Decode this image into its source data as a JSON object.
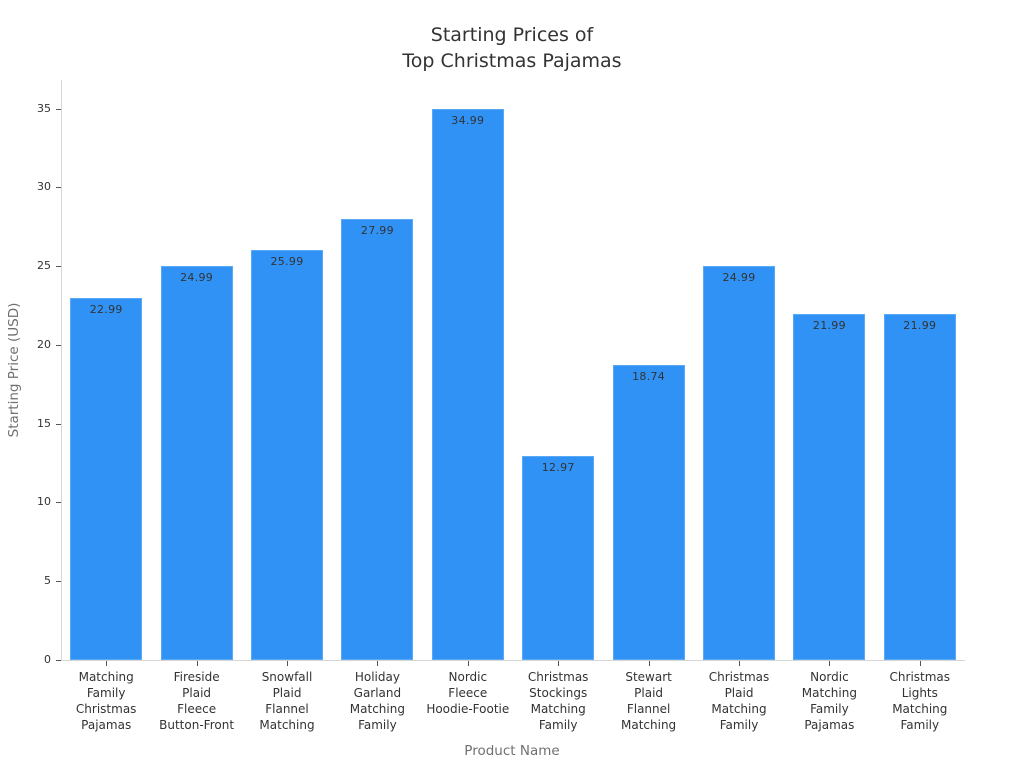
{
  "chart_data": {
    "type": "bar",
    "title": "Starting Prices of\nTop Christmas Pajamas",
    "title_lines": [
      "Starting Prices of",
      "Top Christmas Pajamas"
    ],
    "xlabel": "Product Name",
    "ylabel": "Starting Price (USD)",
    "ylim": [
      0,
      36.7
    ],
    "yticks": [
      0,
      5,
      10,
      15,
      20,
      25,
      30,
      35
    ],
    "grid": false,
    "legend": null,
    "bar_color": "#3092f5",
    "categories": [
      "Matching Family Christmas Pajamas",
      "Fireside Plaid Fleece Button-Front",
      "Snowfall Plaid Flannel Matching",
      "Holiday Garland Matching Family",
      "Nordic Fleece Hoodie-Footie",
      "Christmas Stockings Matching Family",
      "Stewart Plaid Flannel Matching",
      "Christmas Plaid Matching Family",
      "Nordic Matching Family Pajamas",
      "Christmas Lights Matching Family"
    ],
    "category_labels_wrapped": [
      "Matching\nFamily\nChristmas\nPajamas",
      "Fireside\nPlaid\nFleece\nButton-Front",
      "Snowfall\nPlaid\nFlannel\nMatching",
      "Holiday\nGarland\nMatching\nFamily",
      "Nordic\nFleece\nHoodie-Footie",
      "Christmas\nStockings\nMatching\nFamily",
      "Stewart\nPlaid\nFlannel\nMatching",
      "Christmas\nPlaid\nMatching\nFamily",
      "Nordic\nMatching\nFamily\nPajamas",
      "Christmas\nLights\nMatching\nFamily"
    ],
    "values": [
      22.99,
      24.99,
      25.99,
      27.99,
      34.99,
      12.97,
      18.74,
      24.99,
      21.99,
      21.99
    ],
    "value_labels": [
      "22.99",
      "24.99",
      "25.99",
      "27.99",
      "34.99",
      "12.97",
      "18.74",
      "24.99",
      "21.99",
      "21.99"
    ]
  }
}
